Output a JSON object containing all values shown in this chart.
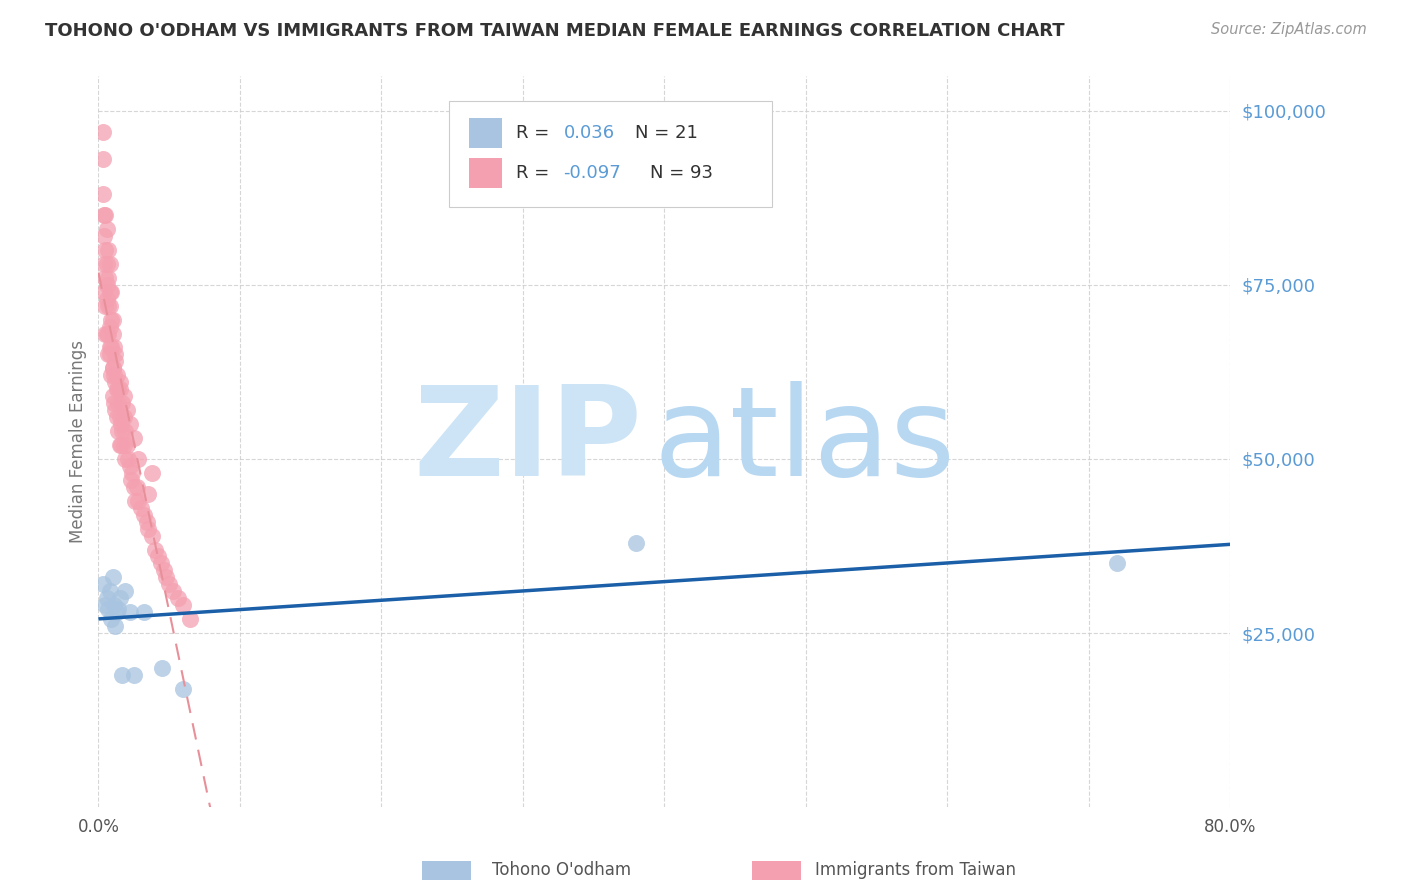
{
  "title": "TOHONO O'ODHAM VS IMMIGRANTS FROM TAIWAN MEDIAN FEMALE EARNINGS CORRELATION CHART",
  "source": "Source: ZipAtlas.com",
  "ylabel": "Median Female Earnings",
  "xlim": [
    0,
    0.8
  ],
  "ylim": [
    0,
    105000
  ],
  "xticks": [
    0.0,
    0.1,
    0.2,
    0.3,
    0.4,
    0.5,
    0.6,
    0.7,
    0.8
  ],
  "xtick_labels": [
    "0.0%",
    "",
    "",
    "",
    "",
    "",
    "",
    "",
    "80.0%"
  ],
  "legend1_label": "Tohono O'odham",
  "legend2_label": "Immigrants from Taiwan",
  "R1": 0.036,
  "N1": 21,
  "R2": -0.097,
  "N2": 93,
  "color1": "#a8c4e0",
  "color2": "#f4a0b0",
  "line_color1": "#1a5fa8",
  "line_color2": "#e8909a",
  "background": "#ffffff",
  "grid_color": "#cccccc",
  "title_color": "#333333",
  "axis_label_color": "#777777",
  "ytick_color": "#5b9bd5",
  "watermark_zip_color": "#cce4f5",
  "watermark_atlas_color": "#b8d8f2",
  "tohono_x": [
    0.003,
    0.005,
    0.006,
    0.007,
    0.008,
    0.009,
    0.01,
    0.011,
    0.012,
    0.013,
    0.014,
    0.015,
    0.017,
    0.019,
    0.022,
    0.025,
    0.032,
    0.045,
    0.06,
    0.38,
    0.72
  ],
  "tohono_y": [
    32000,
    29000,
    30000,
    28500,
    31000,
    27000,
    33000,
    29000,
    26000,
    28000,
    28500,
    30000,
    19000,
    31000,
    28000,
    19000,
    28000,
    20000,
    17000,
    38000,
    35000
  ],
  "taiwan_x": [
    0.003,
    0.003,
    0.003,
    0.004,
    0.004,
    0.004,
    0.004,
    0.005,
    0.005,
    0.005,
    0.005,
    0.005,
    0.006,
    0.006,
    0.006,
    0.006,
    0.006,
    0.007,
    0.007,
    0.007,
    0.007,
    0.007,
    0.008,
    0.008,
    0.008,
    0.008,
    0.008,
    0.009,
    0.009,
    0.009,
    0.009,
    0.01,
    0.01,
    0.01,
    0.01,
    0.011,
    0.011,
    0.011,
    0.012,
    0.012,
    0.012,
    0.013,
    0.013,
    0.013,
    0.014,
    0.014,
    0.014,
    0.015,
    0.015,
    0.015,
    0.016,
    0.016,
    0.017,
    0.017,
    0.018,
    0.018,
    0.019,
    0.019,
    0.02,
    0.021,
    0.022,
    0.023,
    0.024,
    0.025,
    0.026,
    0.027,
    0.028,
    0.03,
    0.032,
    0.034,
    0.035,
    0.038,
    0.04,
    0.042,
    0.044,
    0.046,
    0.048,
    0.05,
    0.053,
    0.056,
    0.06,
    0.065,
    0.038,
    0.02,
    0.025,
    0.015,
    0.012,
    0.018,
    0.008,
    0.01,
    0.022,
    0.028,
    0.035
  ],
  "taiwan_y": [
    93000,
    88000,
    97000,
    82000,
    78000,
    74000,
    85000,
    80000,
    76000,
    72000,
    68000,
    85000,
    78000,
    73000,
    68000,
    83000,
    75000,
    72000,
    68000,
    76000,
    65000,
    80000,
    74000,
    69000,
    65000,
    78000,
    72000,
    70000,
    66000,
    62000,
    74000,
    68000,
    63000,
    59000,
    70000,
    66000,
    62000,
    58000,
    65000,
    61000,
    57000,
    60000,
    56000,
    62000,
    58000,
    54000,
    60000,
    56000,
    52000,
    60000,
    55000,
    52000,
    58000,
    54000,
    52000,
    56000,
    54000,
    50000,
    52000,
    50000,
    49000,
    47000,
    48000,
    46000,
    44000,
    46000,
    44000,
    43000,
    42000,
    41000,
    40000,
    39000,
    37000,
    36000,
    35000,
    34000,
    33000,
    32000,
    31000,
    30000,
    29000,
    27000,
    48000,
    57000,
    53000,
    61000,
    64000,
    59000,
    66000,
    63000,
    55000,
    50000,
    45000
  ]
}
